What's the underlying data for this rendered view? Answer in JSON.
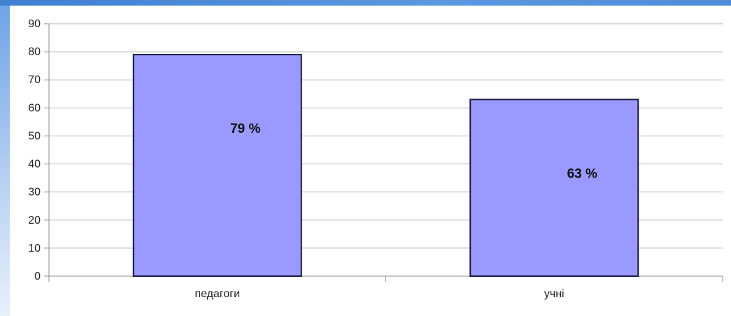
{
  "chart_data": {
    "type": "bar",
    "categories": [
      "педагоги",
      "учні"
    ],
    "values": [
      79,
      63
    ],
    "data_labels": [
      "79 %",
      "63 %"
    ],
    "title": "",
    "xlabel": "",
    "ylabel": "",
    "ylim": [
      0,
      90
    ],
    "yticks": [
      0,
      10,
      20,
      30,
      40,
      50,
      60,
      70,
      80,
      90
    ],
    "grid": true,
    "legend": "none",
    "bar_color": "#9999ff",
    "bar_border_color": "#1a1a40"
  }
}
